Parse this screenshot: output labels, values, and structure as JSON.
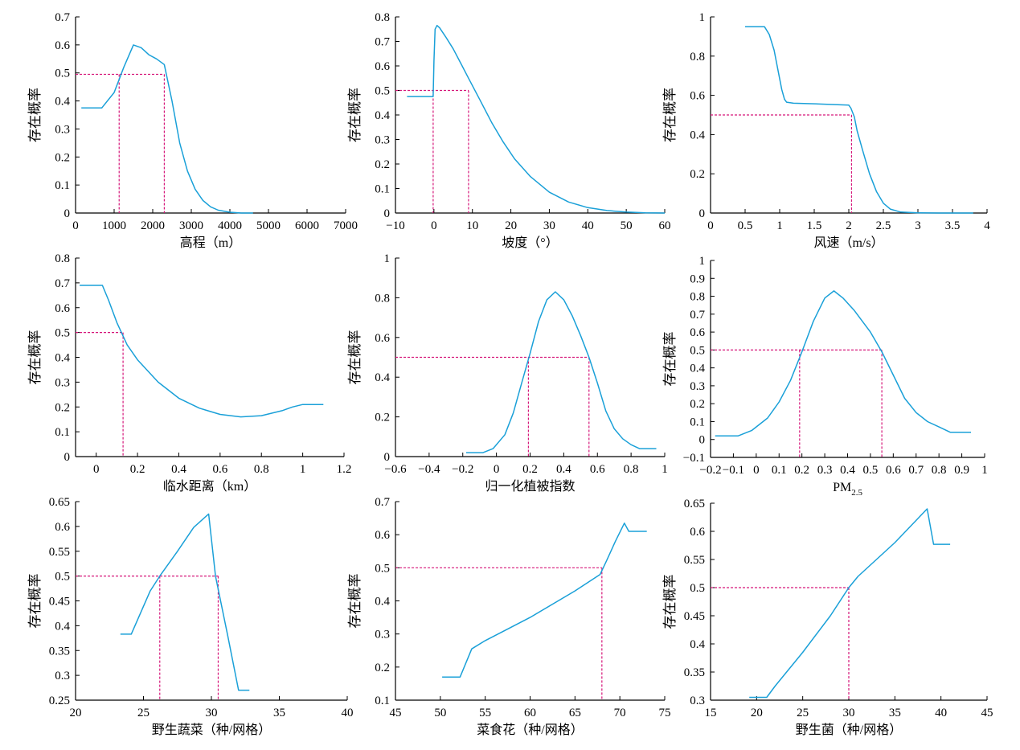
{
  "colors": {
    "curve": "#1aa0d8",
    "threshold": "#d6177a",
    "axis": "#000000"
  },
  "chart_data": [
    {
      "type": "line",
      "xlabel": "高程（m）",
      "ylabel": "存在概率",
      "xlim": [
        0,
        7000
      ],
      "ylim": [
        0,
        0.7
      ],
      "xticks": [
        0,
        1000,
        2000,
        3000,
        4000,
        5000,
        6000,
        7000
      ],
      "yticks": [
        0,
        0.1,
        0.2,
        0.3,
        0.4,
        0.5,
        0.6,
        0.7
      ],
      "series": [
        {
          "x": [
            150,
            680,
            1000,
            1250,
            1500,
            1700,
            1900,
            2100,
            2300,
            2500,
            2700,
            2900,
            3100,
            3300,
            3500,
            3700,
            4000,
            4300,
            4600
          ],
          "y": [
            0.375,
            0.375,
            0.43,
            0.52,
            0.6,
            0.59,
            0.565,
            0.55,
            0.53,
            0.4,
            0.25,
            0.15,
            0.085,
            0.045,
            0.022,
            0.01,
            0.003,
            0.0,
            0.0
          ]
        }
      ],
      "threshold": {
        "y": 0.495,
        "x": [
          1130,
          2300
        ]
      }
    },
    {
      "type": "line",
      "xlabel": "坡度（°）",
      "ylabel": "存在概率",
      "xlim": [
        -10,
        60
      ],
      "ylim": [
        0,
        0.8
      ],
      "xticks": [
        -10,
        0,
        10,
        20,
        30,
        40,
        50,
        60
      ],
      "yticks": [
        0,
        0.1,
        0.2,
        0.3,
        0.4,
        0.5,
        0.6,
        0.7,
        0.8
      ],
      "series": [
        {
          "x": [
            -7,
            -0.2,
            0,
            0.3,
            0.8,
            1.5,
            3,
            5,
            7,
            9,
            12,
            15,
            18,
            21,
            25,
            30,
            35,
            40,
            45,
            50,
            55,
            60
          ],
          "y": [
            0.475,
            0.475,
            0.62,
            0.75,
            0.765,
            0.755,
            0.72,
            0.67,
            0.61,
            0.55,
            0.46,
            0.37,
            0.29,
            0.22,
            0.15,
            0.085,
            0.045,
            0.022,
            0.01,
            0.004,
            0.001,
            0.0
          ]
        }
      ],
      "threshold": {
        "y": 0.5,
        "x": [
          -0.2,
          9
        ]
      }
    },
    {
      "type": "line",
      "xlabel": "风速（m/s）",
      "ylabel": "存在概率",
      "xlim": [
        0,
        4.0
      ],
      "ylim": [
        0,
        1.0
      ],
      "xticks": [
        0,
        0.5,
        1.0,
        1.5,
        2.0,
        2.5,
        3.0,
        3.5,
        4.0
      ],
      "yticks": [
        0,
        0.2,
        0.4,
        0.6,
        0.8,
        1.0
      ],
      "series": [
        {
          "x": [
            0.5,
            0.78,
            0.85,
            0.92,
            0.98,
            1.03,
            1.07,
            1.1,
            1.2,
            1.5,
            1.8,
            2.0,
            2.03,
            2.08,
            2.12,
            2.2,
            2.3,
            2.4,
            2.5,
            2.6,
            2.75,
            3.0,
            3.3,
            3.6,
            3.8
          ],
          "y": [
            0.95,
            0.95,
            0.91,
            0.83,
            0.72,
            0.63,
            0.58,
            0.565,
            0.56,
            0.557,
            0.553,
            0.55,
            0.535,
            0.49,
            0.42,
            0.32,
            0.2,
            0.11,
            0.05,
            0.02,
            0.005,
            0.001,
            0.0,
            0.0,
            0.0
          ]
        }
      ],
      "threshold": {
        "y": 0.5,
        "x": [
          0,
          2.04
        ]
      }
    },
    {
      "type": "line",
      "xlabel": "临水距离（km）",
      "ylabel": "存在概率",
      "xlim": [
        -0.1,
        1.2
      ],
      "ylim": [
        0,
        0.8
      ],
      "xticks": [
        0,
        0.2,
        0.4,
        0.6,
        0.8,
        1.0,
        1.2
      ],
      "yticks": [
        0,
        0.1,
        0.2,
        0.3,
        0.4,
        0.5,
        0.6,
        0.7,
        0.8
      ],
      "series": [
        {
          "x": [
            -0.08,
            0.03,
            0.06,
            0.1,
            0.15,
            0.2,
            0.3,
            0.4,
            0.5,
            0.6,
            0.7,
            0.8,
            0.9,
            0.95,
            1.0,
            1.1
          ],
          "y": [
            0.69,
            0.69,
            0.63,
            0.54,
            0.45,
            0.39,
            0.3,
            0.235,
            0.195,
            0.17,
            0.16,
            0.165,
            0.185,
            0.2,
            0.21,
            0.21
          ]
        }
      ],
      "threshold": {
        "y": 0.5,
        "x": [
          -0.1,
          0.13
        ]
      }
    },
    {
      "type": "line",
      "xlabel": "归一化植被指数",
      "ylabel": "存在概率",
      "xlim": [
        -0.6,
        1.0
      ],
      "ylim": [
        0,
        1.0
      ],
      "xticks": [
        -0.6,
        -0.4,
        -0.2,
        0,
        0.2,
        0.4,
        0.6,
        0.8,
        1.0
      ],
      "yticks": [
        0,
        0.2,
        0.4,
        0.6,
        0.8,
        1.0
      ],
      "series": [
        {
          "x": [
            -0.18,
            -0.08,
            -0.02,
            0.05,
            0.1,
            0.15,
            0.2,
            0.25,
            0.3,
            0.35,
            0.4,
            0.45,
            0.5,
            0.55,
            0.6,
            0.65,
            0.7,
            0.75,
            0.8,
            0.85,
            0.95
          ],
          "y": [
            0.02,
            0.02,
            0.04,
            0.11,
            0.22,
            0.37,
            0.52,
            0.68,
            0.79,
            0.83,
            0.79,
            0.71,
            0.61,
            0.5,
            0.37,
            0.23,
            0.14,
            0.09,
            0.06,
            0.04,
            0.04
          ]
        }
      ],
      "threshold": {
        "y": 0.5,
        "x": [
          0.19,
          0.55
        ]
      }
    },
    {
      "type": "line",
      "xlabel": "PM",
      "xlabel_sub": "2.5",
      "ylabel": "存在概率",
      "xlim": [
        -0.2,
        1.0
      ],
      "ylim": [
        -0.1,
        1.0
      ],
      "xticks": [
        -0.2,
        -0.1,
        0,
        0.1,
        0.2,
        0.3,
        0.4,
        0.5,
        0.6,
        0.7,
        0.8,
        0.9,
        1.0
      ],
      "yticks": [
        -0.1,
        0,
        0.1,
        0.2,
        0.3,
        0.4,
        0.5,
        0.6,
        0.7,
        0.8,
        0.9,
        1.0
      ],
      "series": [
        {
          "x": [
            -0.18,
            -0.08,
            -0.02,
            0.05,
            0.1,
            0.15,
            0.2,
            0.25,
            0.3,
            0.34,
            0.38,
            0.43,
            0.5,
            0.55,
            0.6,
            0.65,
            0.7,
            0.75,
            0.8,
            0.85,
            0.94
          ],
          "y": [
            0.02,
            0.02,
            0.05,
            0.12,
            0.21,
            0.33,
            0.49,
            0.66,
            0.79,
            0.83,
            0.79,
            0.72,
            0.6,
            0.49,
            0.36,
            0.23,
            0.15,
            0.1,
            0.07,
            0.04,
            0.04
          ]
        }
      ],
      "threshold": {
        "y": 0.5,
        "x": [
          0.19,
          0.55
        ]
      }
    },
    {
      "type": "line",
      "xlabel": "野生蔬菜（种/网格）",
      "ylabel": "存在概率",
      "xlim": [
        20,
        40
      ],
      "ylim": [
        0.25,
        0.65
      ],
      "xticks": [
        20,
        25,
        30,
        35,
        40
      ],
      "yticks": [
        0.25,
        0.3,
        0.35,
        0.4,
        0.45,
        0.5,
        0.55,
        0.6,
        0.65
      ],
      "series": [
        {
          "x": [
            23.3,
            24.1,
            25.5,
            26.2,
            27.5,
            28.7,
            29.8,
            30.3,
            31.2,
            32.0,
            32.8
          ],
          "y": [
            0.383,
            0.383,
            0.47,
            0.5,
            0.55,
            0.598,
            0.625,
            0.5,
            0.38,
            0.27,
            0.27
          ]
        }
      ],
      "threshold": {
        "y": 0.5,
        "x": [
          26.2,
          30.5
        ]
      }
    },
    {
      "type": "line",
      "xlabel": "菜食花（种/网格）",
      "ylabel": "存在概率",
      "xlim": [
        45,
        75
      ],
      "ylim": [
        0.1,
        0.7
      ],
      "xticks": [
        45,
        50,
        55,
        60,
        65,
        70,
        75
      ],
      "yticks": [
        0.1,
        0.2,
        0.3,
        0.4,
        0.5,
        0.6,
        0.7
      ],
      "series": [
        {
          "x": [
            50.2,
            52.2,
            53.5,
            55,
            60,
            65,
            67.8,
            68.5,
            69.5,
            70.5,
            71,
            73
          ],
          "y": [
            0.17,
            0.17,
            0.255,
            0.28,
            0.35,
            0.43,
            0.48,
            0.52,
            0.58,
            0.635,
            0.61,
            0.61
          ]
        }
      ],
      "threshold": {
        "y": 0.5,
        "x": [
          45,
          68
        ]
      }
    },
    {
      "type": "line",
      "xlabel": "野生菌（种/网格）",
      "ylabel": "存在概率",
      "xlim": [
        15,
        45
      ],
      "ylim": [
        0.3,
        0.65
      ],
      "xticks": [
        15,
        20,
        25,
        30,
        35,
        40,
        45
      ],
      "yticks": [
        0.3,
        0.35,
        0.4,
        0.45,
        0.5,
        0.55,
        0.6,
        0.65
      ],
      "series": [
        {
          "x": [
            19.2,
            21.1,
            22,
            25,
            28,
            30,
            31,
            35,
            38.5,
            39.2,
            41
          ],
          "y": [
            0.305,
            0.305,
            0.325,
            0.385,
            0.45,
            0.5,
            0.52,
            0.58,
            0.64,
            0.577,
            0.577
          ]
        }
      ],
      "threshold": {
        "y": 0.5,
        "x": [
          15,
          30
        ]
      }
    }
  ]
}
